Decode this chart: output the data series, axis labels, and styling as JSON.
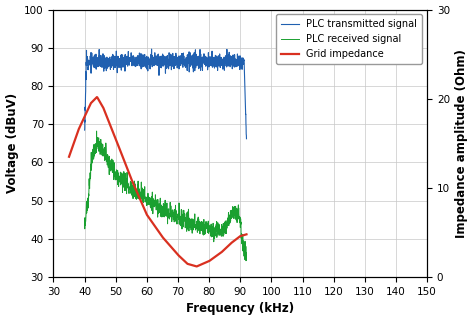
{
  "xlim": [
    30,
    150
  ],
  "ylim_left": [
    30,
    100
  ],
  "ylim_right": [
    0,
    30
  ],
  "xticks": [
    30,
    40,
    50,
    60,
    70,
    80,
    90,
    100,
    110,
    120,
    130,
    140,
    150
  ],
  "yticks_left": [
    30,
    40,
    50,
    60,
    70,
    80,
    90,
    100
  ],
  "yticks_right": [
    0,
    10,
    20,
    30
  ],
  "xlabel": "Frequency (kHz)",
  "ylabel_left": "Voltage (dBuV)",
  "ylabel_right": "Impedance amplitude (Ohm)",
  "legend_labels": [
    "PLC transmitted signal",
    "PLC received signal",
    "Grid impedance"
  ],
  "colors": {
    "blue": "#2060B0",
    "green": "#1AA030",
    "red": "#D93020"
  },
  "grid_color": "#C8C8C8",
  "background_color": "#FFFFFF",
  "noise_seed": 12
}
